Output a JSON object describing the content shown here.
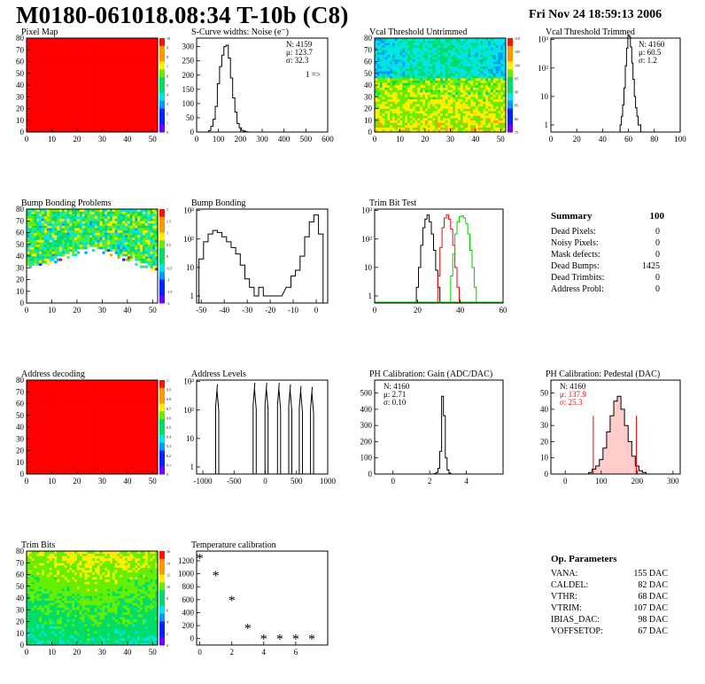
{
  "header": {
    "title": "M0180-061018.08:34 T-10b (C8)",
    "date": "Fri Nov 24 18:59:13 2006"
  },
  "colors": {
    "red": "#ff0000",
    "green": "#00cc00",
    "black": "#000000",
    "ped_fill": "#ffcccc"
  },
  "chart_data": [
    {
      "id": "pixel-map",
      "type": "heatmap",
      "title": "Pixel Map",
      "xlim": [
        0,
        52
      ],
      "ylim": [
        0,
        80
      ],
      "xticks": [
        "0",
        "10",
        "20",
        "30",
        "40",
        "50"
      ],
      "yticks": [
        "0",
        "10",
        "20",
        "30",
        "40",
        "50",
        "60",
        "70",
        "80"
      ],
      "fill": "uniform-red",
      "zscale": [
        "10",
        "9",
        "8",
        "7",
        "6",
        "5",
        "4",
        "3",
        "2",
        "1",
        "0"
      ]
    },
    {
      "id": "scurve-noise",
      "type": "histogram",
      "title": "S-Curve widths: Noise (e⁻)",
      "xlim": [
        0,
        600
      ],
      "ylim": [
        0,
        330
      ],
      "xticks": [
        "0",
        "100",
        "200",
        "300",
        "400",
        "500",
        "600"
      ],
      "yticks": [
        "0",
        "50",
        "100",
        "150",
        "200",
        "250",
        "300"
      ],
      "stats": [
        "N: 4159",
        "μ: 123.7",
        "σ: 32.3"
      ],
      "note": "1 =>",
      "bins": [
        [
          60,
          5
        ],
        [
          70,
          20
        ],
        [
          80,
          45
        ],
        [
          90,
          90
        ],
        [
          100,
          170
        ],
        [
          110,
          230
        ],
        [
          120,
          270
        ],
        [
          130,
          300
        ],
        [
          140,
          305
        ],
        [
          150,
          260
        ],
        [
          160,
          190
        ],
        [
          170,
          120
        ],
        [
          180,
          70
        ],
        [
          190,
          30
        ],
        [
          200,
          15
        ],
        [
          210,
          6
        ],
        [
          220,
          3
        ],
        [
          230,
          1
        ]
      ]
    },
    {
      "id": "vcal-untrimmed",
      "type": "heatmap",
      "title": "Vcal Threshold Untrimmed",
      "xlim": [
        0,
        52
      ],
      "ylim": [
        0,
        80
      ],
      "xticks": [
        "0",
        "10",
        "20",
        "30",
        "40",
        "50"
      ],
      "yticks": [
        "0",
        "10",
        "20",
        "30",
        "40",
        "50",
        "60",
        "70",
        "80"
      ],
      "zscale": [
        "110",
        "105",
        "100",
        "95",
        "90",
        "85",
        "80",
        "75"
      ]
    },
    {
      "id": "vcal-trimmed",
      "type": "histogram",
      "title": "Vcal Threshold Trimmed",
      "ylog": true,
      "xlim": [
        0,
        100
      ],
      "yticks": [
        "1",
        "10",
        "10²",
        "10³"
      ],
      "xticks": [
        "0",
        "20",
        "40",
        "60",
        "80",
        "100"
      ],
      "stats": [
        "N: 4160",
        "μ: 60.5",
        "σ: 1.2"
      ],
      "bins": [
        [
          54,
          1
        ],
        [
          55,
          2
        ],
        [
          56,
          5
        ],
        [
          57,
          20
        ],
        [
          58,
          120
        ],
        [
          59,
          500
        ],
        [
          60,
          1400
        ],
        [
          61,
          1300
        ],
        [
          62,
          550
        ],
        [
          63,
          150
        ],
        [
          64,
          40
        ],
        [
          65,
          10
        ],
        [
          66,
          4
        ],
        [
          67,
          2
        ],
        [
          68,
          1
        ],
        [
          69,
          1
        ]
      ]
    },
    {
      "id": "bump-problems",
      "type": "heatmap",
      "title": "Bump Bonding Problems",
      "xlim": [
        0,
        52
      ],
      "ylim": [
        0,
        80
      ],
      "xticks": [
        "0",
        "10",
        "20",
        "30",
        "40",
        "50"
      ],
      "yticks": [
        "0",
        "10",
        "20",
        "30",
        "40",
        "50",
        "60",
        "70",
        "80"
      ],
      "zscale": [
        "2",
        "1.5",
        "1",
        "0.5",
        "0",
        "-0.5",
        "-1",
        "-1.5",
        "-2"
      ]
    },
    {
      "id": "bump-bonding",
      "type": "histogram",
      "title": "Bump Bonding",
      "ylog": true,
      "xlim": [
        -52,
        5
      ],
      "xticks": [
        "-50",
        "-40",
        "-30",
        "-20",
        "-10",
        "0"
      ],
      "yticks": [
        "1",
        "10",
        "10²",
        "10³"
      ],
      "bins": [
        [
          -50,
          20
        ],
        [
          -48,
          80
        ],
        [
          -46,
          150
        ],
        [
          -44,
          200
        ],
        [
          -42,
          170
        ],
        [
          -40,
          120
        ],
        [
          -38,
          80
        ],
        [
          -36,
          50
        ],
        [
          -34,
          30
        ],
        [
          -32,
          12
        ],
        [
          -30,
          4
        ],
        [
          -28,
          2
        ],
        [
          -26,
          1
        ],
        [
          -24,
          2
        ],
        [
          -22,
          1
        ],
        [
          -16,
          1
        ],
        [
          -12,
          2
        ],
        [
          -10,
          5
        ],
        [
          -8,
          8
        ],
        [
          -6,
          25
        ],
        [
          -4,
          120
        ],
        [
          -2,
          400
        ],
        [
          0,
          700
        ],
        [
          2,
          150
        ]
      ]
    },
    {
      "id": "trim-bit-test",
      "type": "histogram",
      "title": "Trim Bit Test",
      "ylog": true,
      "xlim": [
        0,
        60
      ],
      "xticks": [
        "0",
        "20",
        "40",
        "60"
      ],
      "yticks": [
        "1",
        "10",
        "10²",
        "10³"
      ],
      "series": [
        {
          "color": "#000000",
          "bins": [
            [
              20,
              2
            ],
            [
              21,
              10
            ],
            [
              22,
              60
            ],
            [
              23,
              250
            ],
            [
              24,
              500
            ],
            [
              25,
              700
            ],
            [
              26,
              400
            ],
            [
              27,
              150
            ],
            [
              28,
              40
            ],
            [
              29,
              8
            ],
            [
              30,
              2
            ]
          ]
        },
        {
          "color": "#ff0000",
          "bins": [
            [
              30,
              5
            ],
            [
              31,
              50
            ],
            [
              32,
              250
            ],
            [
              33,
              550
            ],
            [
              34,
              700
            ],
            [
              35,
              500
            ],
            [
              36,
              220
            ],
            [
              37,
              60
            ],
            [
              38,
              10
            ],
            [
              39,
              2
            ]
          ]
        },
        {
          "color": "#00cc00",
          "bins": [
            [
              36,
              5
            ],
            [
              37,
              30
            ],
            [
              38,
              150
            ],
            [
              39,
              400
            ],
            [
              40,
              600
            ],
            [
              41,
              650
            ],
            [
              42,
              550
            ],
            [
              43,
              350
            ],
            [
              44,
              150
            ],
            [
              45,
              40
            ],
            [
              46,
              10
            ],
            [
              47,
              2
            ]
          ]
        }
      ]
    },
    {
      "id": "address-decoding",
      "type": "heatmap",
      "title": "Address decoding",
      "xlim": [
        0,
        52
      ],
      "ylim": [
        0,
        80
      ],
      "xticks": [
        "0",
        "10",
        "20",
        "30",
        "40",
        "50"
      ],
      "yticks": [
        "0",
        "10",
        "20",
        "30",
        "40",
        "50",
        "60",
        "70",
        "80"
      ],
      "fill": "uniform-red",
      "zscale": [
        "1",
        "0.9",
        "0.8",
        "0.7",
        "0.6",
        "0.5",
        "0.4",
        "0.3",
        "0.2",
        "0.1",
        "0"
      ]
    },
    {
      "id": "address-levels",
      "type": "histogram",
      "title": "Address Levels",
      "ylog": true,
      "xlim": [
        -1100,
        1000
      ],
      "xticks": [
        "-1000",
        "-500",
        "0",
        "500",
        "1000"
      ],
      "yticks": [
        "1",
        "10",
        "10²",
        "10³"
      ],
      "peaks": [
        [
          -770,
          800
        ],
        [
          -170,
          900
        ],
        [
          20,
          900
        ],
        [
          220,
          900
        ],
        [
          400,
          800
        ],
        [
          570,
          700
        ],
        [
          750,
          650
        ]
      ]
    },
    {
      "id": "ph-gain",
      "type": "histogram",
      "title": "PH Calibration: Gain (ADC/DAC)",
      "xlim": [
        -1,
        6
      ],
      "ylim": [
        0,
        580
      ],
      "xticks": [
        "0",
        "2",
        "4"
      ],
      "yticks": [
        "0",
        "100",
        "200",
        "300",
        "400",
        "500"
      ],
      "stats": [
        "N: 4160",
        "μ: 2.71",
        "σ: 0.10"
      ],
      "bins": [
        [
          2.3,
          3
        ],
        [
          2.4,
          10
        ],
        [
          2.5,
          35
        ],
        [
          2.6,
          140
        ],
        [
          2.7,
          480
        ],
        [
          2.8,
          360
        ],
        [
          2.9,
          100
        ],
        [
          3.0,
          25
        ],
        [
          3.1,
          6
        ]
      ]
    },
    {
      "id": "ph-pedestal",
      "type": "histogram",
      "title": "PH Calibration: Pedestal (DAC)",
      "xlim": [
        -40,
        320
      ],
      "ylim": [
        0,
        58
      ],
      "xticks": [
        "0",
        "100",
        "200",
        "300"
      ],
      "yticks": [
        "0",
        "10",
        "20",
        "30",
        "40",
        "50"
      ],
      "stats": [
        "N: 4160",
        "μ: 137.9",
        "σ: 25.3"
      ],
      "bins": [
        [
          70,
          1
        ],
        [
          80,
          3
        ],
        [
          90,
          5
        ],
        [
          100,
          9
        ],
        [
          110,
          16
        ],
        [
          120,
          26
        ],
        [
          130,
          36
        ],
        [
          140,
          45
        ],
        [
          150,
          48
        ],
        [
          160,
          40
        ],
        [
          170,
          30
        ],
        [
          180,
          20
        ],
        [
          190,
          11
        ],
        [
          200,
          5
        ],
        [
          210,
          2
        ],
        [
          220,
          1
        ]
      ],
      "cuts": [
        78,
        198
      ]
    },
    {
      "id": "trim-bits",
      "type": "heatmap",
      "title": "Trim Bits",
      "xlim": [
        0,
        52
      ],
      "ylim": [
        0,
        80
      ],
      "xticks": [
        "0",
        "10",
        "20",
        "30",
        "40",
        "50"
      ],
      "yticks": [
        "0",
        "10",
        "20",
        "30",
        "40",
        "50",
        "60",
        "70",
        "80"
      ],
      "zscale": [
        "16",
        "14",
        "12",
        "10",
        "8",
        "6",
        "4",
        "2",
        "0"
      ]
    },
    {
      "id": "temperature-calibration",
      "type": "scatter",
      "title": "Temperature calibration",
      "xlim": [
        -0.2,
        8
      ],
      "ylim": [
        -100,
        1350
      ],
      "xticks": [
        "0",
        "2",
        "4",
        "6"
      ],
      "yticks": [
        "0",
        "200",
        "400",
        "600",
        "800",
        "1000",
        "1200"
      ],
      "x": [
        0,
        1,
        2,
        3,
        4,
        5,
        6,
        7
      ],
      "y": [
        1250,
        980,
        600,
        170,
        0,
        0,
        0,
        0
      ]
    }
  ],
  "summary": {
    "title": "Summary",
    "value": "100",
    "rows": [
      {
        "label": "Dead Pixels:",
        "value": "0"
      },
      {
        "label": "Noisy Pixels:",
        "value": "0"
      },
      {
        "label": "Mask defects:",
        "value": "0"
      },
      {
        "label": "Dead Bumps:",
        "value": "1425"
      },
      {
        "label": "Dead Trimbits:",
        "value": "0"
      },
      {
        "label": "Address Probl:",
        "value": "0"
      }
    ]
  },
  "op_params": {
    "title": "Op. Parameters",
    "rows": [
      {
        "label": "VANA:",
        "value": "155 DAC"
      },
      {
        "label": "CALDEL:",
        "value": "82 DAC"
      },
      {
        "label": "VTHR:",
        "value": "68 DAC"
      },
      {
        "label": "VTRIM:",
        "value": "107 DAC"
      },
      {
        "label": "IBIAS_DAC:",
        "value": "98 DAC"
      },
      {
        "label": "VOFFSETOP:",
        "value": "67 DAC"
      }
    ]
  }
}
